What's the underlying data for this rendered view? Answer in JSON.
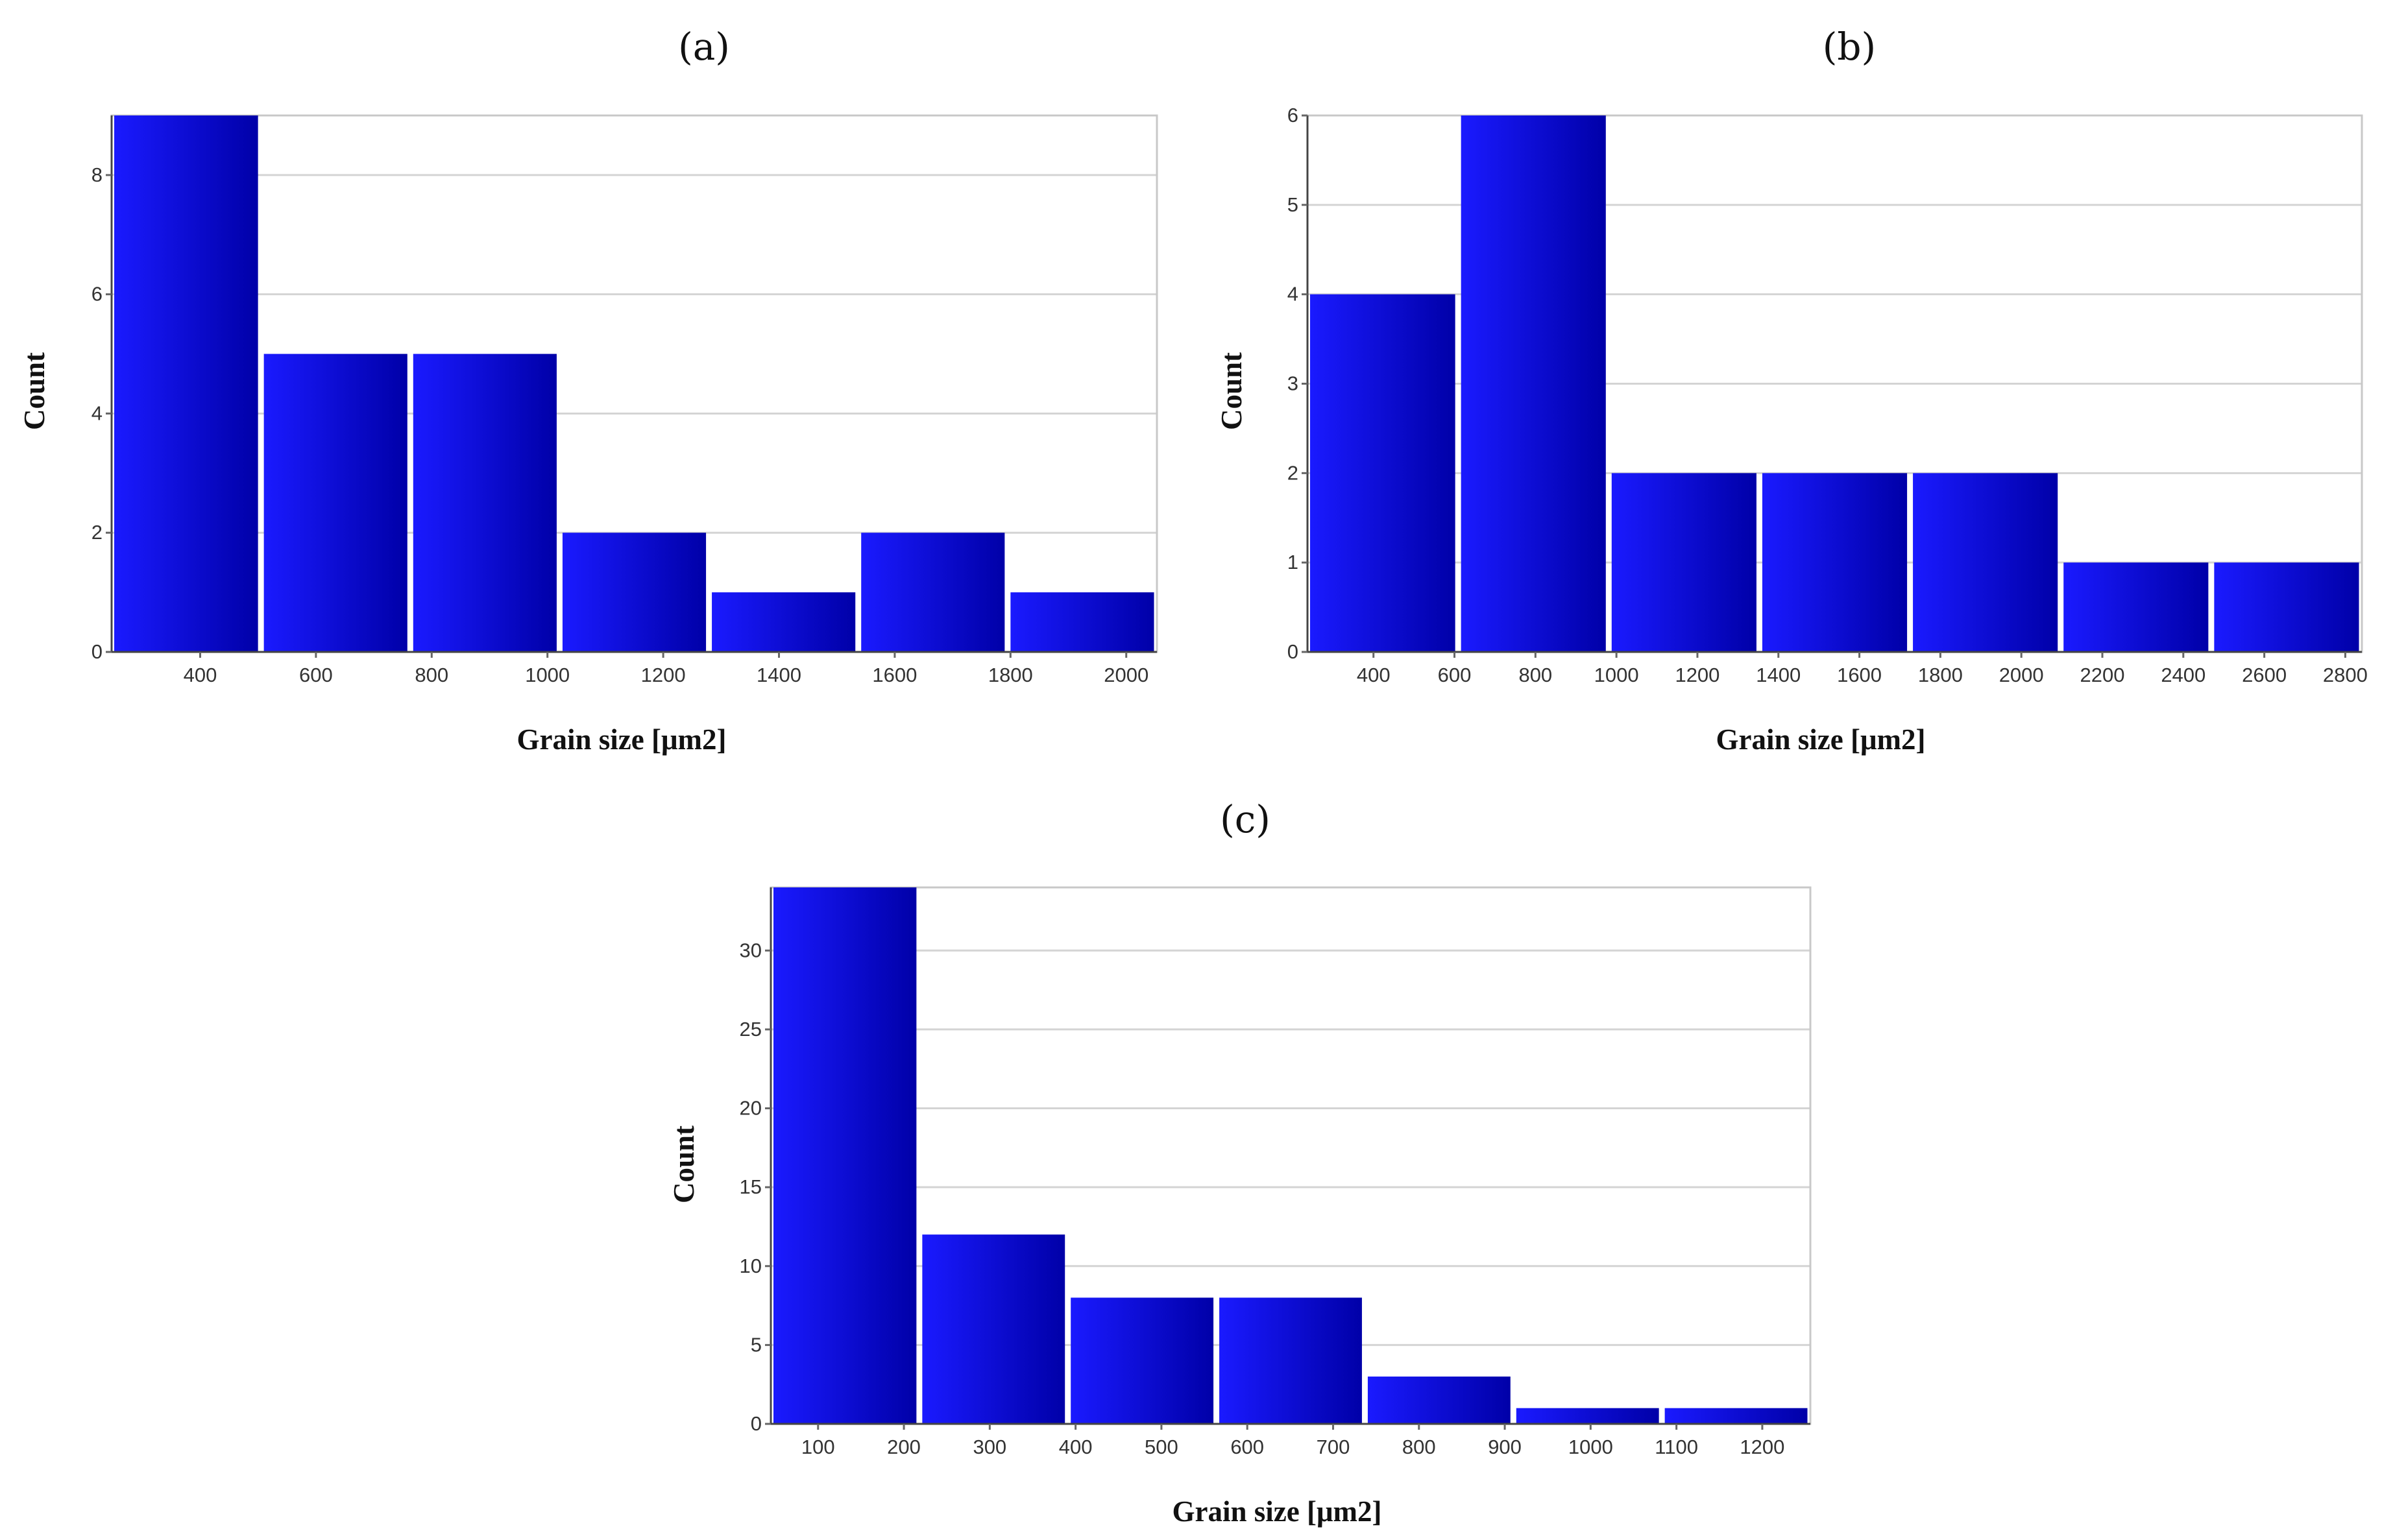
{
  "colors": {
    "bar_light": "#1a1aff",
    "bar_dark": "#0000a8",
    "grid": "#d4d4d4"
  },
  "chart_data": [
    {
      "type": "bar",
      "title": "(a)",
      "xlabel": "Grain size [μm2]",
      "ylabel": "Count",
      "bin_edges": [
        247,
        505,
        763,
        1021,
        1279,
        1537,
        1795,
        2053
      ],
      "values": [
        9,
        5,
        5,
        2,
        1,
        2,
        1
      ],
      "xlim": [
        247,
        2053
      ],
      "ylim": [
        0,
        9
      ],
      "x_ticks": [
        400,
        600,
        800,
        1000,
        1200,
        1400,
        1600,
        1800,
        2000
      ],
      "y_ticks": [
        0,
        2,
        4,
        6,
        8
      ],
      "grid": true
    },
    {
      "type": "bar",
      "title": "(b)",
      "xlabel": "Grain size [μm2]",
      "ylabel": "Count",
      "bin_edges": [
        237,
        609,
        981,
        1353,
        1725,
        2097,
        2469,
        2841
      ],
      "values": [
        4,
        6,
        2,
        2,
        2,
        1,
        1
      ],
      "xlim": [
        237,
        2841
      ],
      "ylim": [
        0,
        6
      ],
      "x_ticks": [
        400,
        600,
        800,
        1000,
        1200,
        1400,
        1600,
        1800,
        2000,
        2200,
        2400,
        2600,
        2800
      ],
      "y_ticks": [
        0,
        1,
        2,
        3,
        4,
        5,
        6
      ],
      "grid": true
    },
    {
      "type": "bar",
      "title": "(c)",
      "xlabel": "Grain size [μm2]",
      "ylabel": "Count",
      "bin_edges": [
        45,
        218,
        391,
        564,
        737,
        910,
        1083,
        1256
      ],
      "values": [
        34,
        12,
        8,
        8,
        3,
        1,
        1
      ],
      "xlim": [
        45,
        1256
      ],
      "ylim": [
        0,
        34
      ],
      "x_ticks": [
        100,
        200,
        300,
        400,
        500,
        600,
        700,
        800,
        900,
        1000,
        1100,
        1200
      ],
      "y_ticks": [
        0,
        5,
        10,
        15,
        20,
        25,
        30
      ],
      "grid": true
    }
  ]
}
